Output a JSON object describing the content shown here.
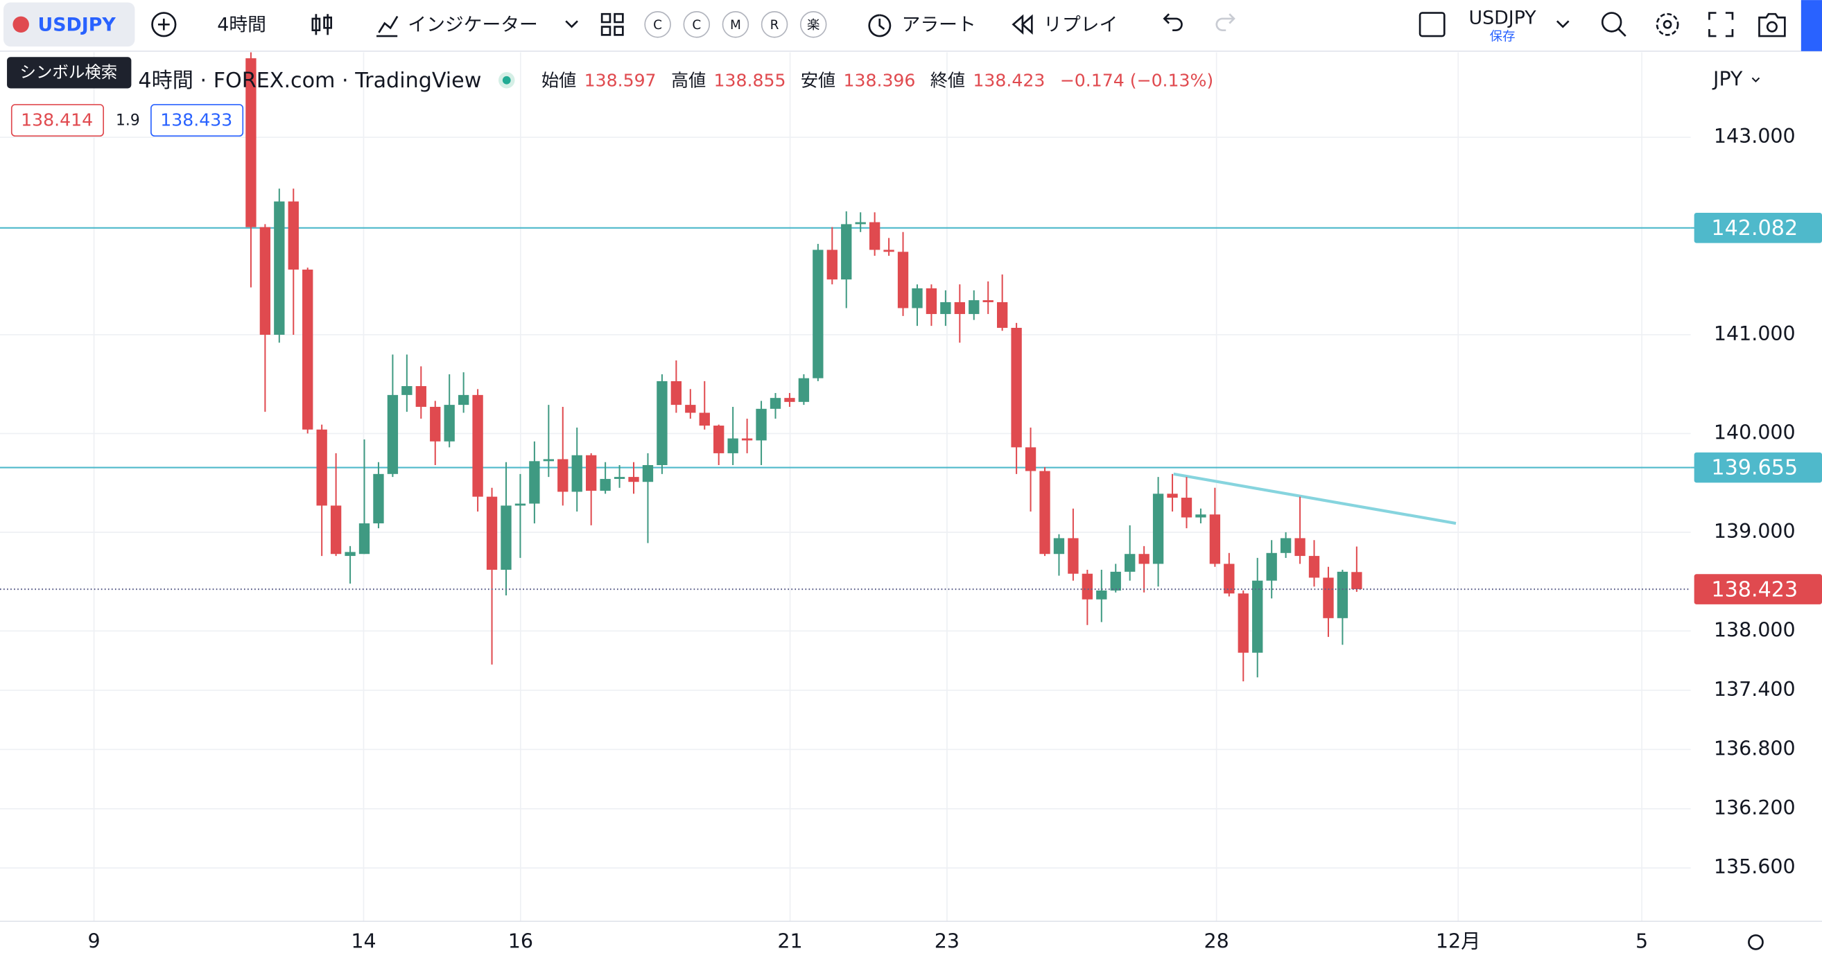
{
  "toolbar": {
    "symbol": "USDJPY",
    "interval": "4時間",
    "indicators": "インジケーター",
    "brokers": [
      "C",
      "C",
      "M",
      "R",
      "楽"
    ],
    "alert": "アラート",
    "replay": "リプレイ",
    "layout_symbol": "USDJPY",
    "save": "保存"
  },
  "tooltip": "シンボル検索",
  "legend": {
    "title": "4時間 · FOREX.com · TradingView",
    "open_label": "始値",
    "high_label": "高値",
    "low_label": "安値",
    "close_label": "終値",
    "change": "−0.174 (−0.13%)"
  },
  "quote": {
    "bid": "138.414",
    "spread": "1.9",
    "ask": "138.433"
  },
  "chart_data": {
    "type": "candlestick",
    "currency": "JPY",
    "up_color": "#3f9a82",
    "down_color": "#e04a4f",
    "grid": true,
    "open": [
      143.8,
      142.09,
      141.0,
      142.35,
      141.66,
      140.04,
      139.27,
      138.76,
      138.78,
      139.09,
      139.59,
      140.39,
      140.48,
      140.27,
      139.92,
      140.29,
      140.39,
      139.36,
      138.62,
      139.27,
      139.29,
      139.72,
      139.74,
      139.41,
      139.78,
      139.42,
      139.54,
      139.56,
      139.51,
      139.68,
      140.53,
      140.29,
      140.21,
      140.08,
      139.8,
      139.95,
      139.93,
      140.25,
      140.36,
      140.32,
      140.56,
      141.86,
      141.56,
      142.12,
      142.14,
      141.86,
      141.84,
      141.27,
      141.47,
      141.21,
      141.33,
      141.21,
      141.35,
      141.33,
      141.07,
      139.86,
      139.62,
      138.78,
      138.94,
      138.58,
      138.32,
      138.41,
      138.6,
      138.78,
      138.68,
      139.39,
      139.35,
      139.15,
      139.18,
      138.68,
      138.38,
      137.78,
      138.51,
      138.79,
      138.94,
      138.76,
      138.54,
      138.13,
      138.597
    ],
    "high": [
      143.86,
      142.12,
      142.48,
      142.48,
      141.68,
      140.09,
      139.8,
      138.86,
      139.94,
      139.71,
      140.8,
      140.8,
      140.68,
      140.33,
      140.6,
      140.62,
      140.45,
      139.45,
      139.71,
      139.59,
      139.92,
      140.29,
      140.27,
      140.06,
      139.8,
      139.71,
      139.68,
      139.71,
      139.8,
      140.6,
      140.74,
      140.45,
      140.53,
      140.09,
      140.27,
      140.15,
      140.33,
      140.41,
      140.41,
      140.6,
      141.92,
      142.09,
      142.25,
      142.24,
      142.24,
      141.98,
      142.04,
      141.51,
      141.51,
      141.45,
      141.51,
      141.45,
      141.54,
      141.61,
      141.12,
      140.06,
      139.66,
      138.98,
      139.24,
      138.62,
      138.62,
      138.68,
      139.07,
      138.86,
      139.56,
      139.59,
      139.56,
      139.24,
      139.45,
      138.79,
      138.41,
      138.74,
      138.92,
      139.0,
      139.36,
      138.92,
      138.65,
      138.62,
      138.855
    ],
    "low": [
      141.48,
      140.22,
      140.92,
      141.0,
      140.0,
      138.76,
      138.76,
      138.48,
      138.78,
      139.04,
      139.56,
      140.22,
      140.15,
      139.68,
      139.86,
      140.21,
      139.21,
      137.66,
      138.36,
      138.74,
      139.09,
      139.56,
      139.27,
      139.21,
      139.07,
      139.39,
      139.45,
      139.39,
      138.89,
      139.59,
      140.21,
      140.15,
      140.04,
      139.68,
      139.68,
      139.8,
      139.68,
      140.15,
      140.27,
      140.29,
      140.53,
      141.51,
      141.27,
      142.04,
      141.8,
      141.8,
      141.19,
      141.09,
      141.09,
      141.09,
      140.92,
      141.15,
      141.21,
      141.04,
      139.59,
      139.21,
      138.76,
      138.56,
      138.51,
      138.06,
      138.09,
      138.39,
      138.51,
      138.39,
      138.45,
      139.21,
      139.04,
      139.09,
      138.65,
      138.35,
      137.49,
      137.53,
      138.33,
      138.74,
      138.68,
      138.45,
      137.94,
      137.86,
      138.396
    ],
    "close": [
      142.09,
      141.0,
      142.35,
      141.66,
      140.04,
      139.27,
      138.78,
      138.8,
      139.09,
      139.59,
      140.39,
      140.48,
      140.27,
      139.92,
      140.29,
      140.39,
      139.36,
      138.62,
      139.27,
      139.29,
      139.72,
      139.74,
      139.41,
      139.78,
      139.42,
      139.54,
      139.56,
      139.51,
      139.68,
      140.53,
      140.29,
      140.21,
      140.08,
      139.8,
      139.95,
      139.93,
      140.25,
      140.36,
      140.32,
      140.56,
      141.86,
      141.56,
      142.12,
      142.14,
      141.86,
      141.84,
      141.27,
      141.47,
      141.21,
      141.33,
      141.21,
      141.35,
      141.33,
      141.07,
      139.86,
      139.62,
      138.78,
      138.94,
      138.58,
      138.32,
      138.41,
      138.6,
      138.78,
      138.68,
      139.39,
      139.35,
      139.15,
      139.18,
      138.68,
      138.38,
      137.78,
      138.51,
      138.79,
      138.94,
      138.76,
      138.54,
      138.13,
      138.6,
      138.423
    ],
    "ylim": [
      135.06,
      143.86
    ],
    "yticks": [
      {
        "value": 143,
        "label": "143.000"
      },
      {
        "value": 141,
        "label": "141.000"
      },
      {
        "value": 140,
        "label": "140.000"
      },
      {
        "value": 139,
        "label": "139.000"
      },
      {
        "value": 138,
        "label": "138.000"
      },
      {
        "value": 137.4,
        "label": "137.400"
      },
      {
        "value": 136.8,
        "label": "136.800"
      },
      {
        "value": 136.2,
        "label": "136.200"
      },
      {
        "value": 135.6,
        "label": "135.600"
      }
    ],
    "xlim": [
      -17.7,
      101.56
    ],
    "xticks": [
      {
        "value": -11.07,
        "label": "9"
      },
      {
        "value": 7.95,
        "label": "14"
      },
      {
        "value": 19.02,
        "label": "16"
      },
      {
        "value": 38.03,
        "label": "21"
      },
      {
        "value": 49.1,
        "label": "23"
      },
      {
        "value": 68.11,
        "label": "28"
      },
      {
        "value": 85.16,
        "label": "12月"
      },
      {
        "value": 98.11,
        "label": "5"
      }
    ],
    "hlines": [
      {
        "value": 142.082,
        "color": "#4fb9cb"
      },
      {
        "value": 139.655,
        "color": "#4fb9cb"
      }
    ],
    "trendlines": [
      {
        "x": [
          65.08,
          85.0
        ],
        "y": [
          139.59,
          139.09
        ],
        "color": "#86d4de"
      }
    ]
  }
}
